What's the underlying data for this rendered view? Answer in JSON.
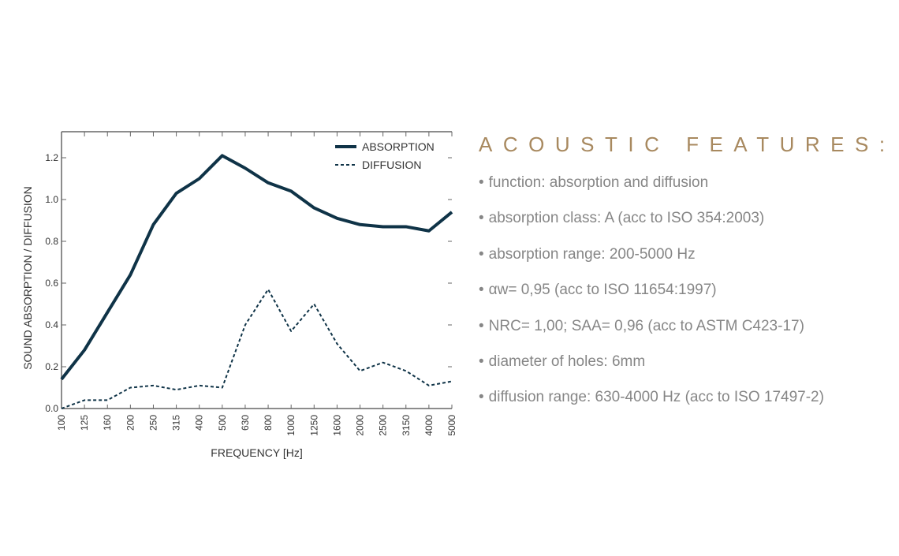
{
  "chart_data": {
    "type": "line",
    "xlabel": "FREQUENCY [Hz]",
    "ylabel": "SOUND ABSORPTION / DIFFUSION",
    "categories": [
      "100",
      "125",
      "160",
      "200",
      "250",
      "315",
      "400",
      "500",
      "630",
      "800",
      "1000",
      "1250",
      "1600",
      "2000",
      "2500",
      "3150",
      "4000",
      "5000"
    ],
    "yticks": [
      "0.0",
      "0.2",
      "0.4",
      "0.6",
      "0.8",
      "1.0",
      "1.2"
    ],
    "ylim": [
      0,
      1.32
    ],
    "grid": false,
    "legend_position": "top-right",
    "series": [
      {
        "name": "ABSORPTION",
        "style": "solid",
        "color": "#0f3347",
        "values": [
          0.14,
          0.28,
          0.46,
          0.64,
          0.88,
          1.03,
          1.1,
          1.21,
          1.15,
          1.08,
          1.04,
          0.96,
          0.91,
          0.88,
          0.87,
          0.87,
          0.85,
          0.94
        ]
      },
      {
        "name": "DIFFUSION",
        "style": "dashed",
        "color": "#0f3347",
        "values": [
          0.0,
          0.04,
          0.04,
          0.1,
          0.11,
          0.09,
          0.11,
          0.1,
          0.4,
          0.57,
          0.37,
          0.5,
          0.31,
          0.18,
          0.22,
          0.18,
          0.11,
          0.13
        ]
      }
    ]
  },
  "features": {
    "title": "ACOUSTIC FEATURES:",
    "bullet": "•",
    "items": [
      "function: absorption and diffusion",
      "absorption class: A (acc to ISO 354:2003)",
      "absorption range: 200-5000 Hz",
      "αw= 0,95 (acc to ISO 11654:1997)",
      "NRC= 1,00; SAA= 0,96 (acc to ASTM C423-17)",
      "diameter of holes: 6mm",
      "diffusion range: 630-4000 Hz (acc to ISO 17497-2)"
    ]
  },
  "colors": {
    "title": "#a8895f",
    "text": "#868686",
    "line": "#0f3347",
    "axis": "#666666"
  }
}
